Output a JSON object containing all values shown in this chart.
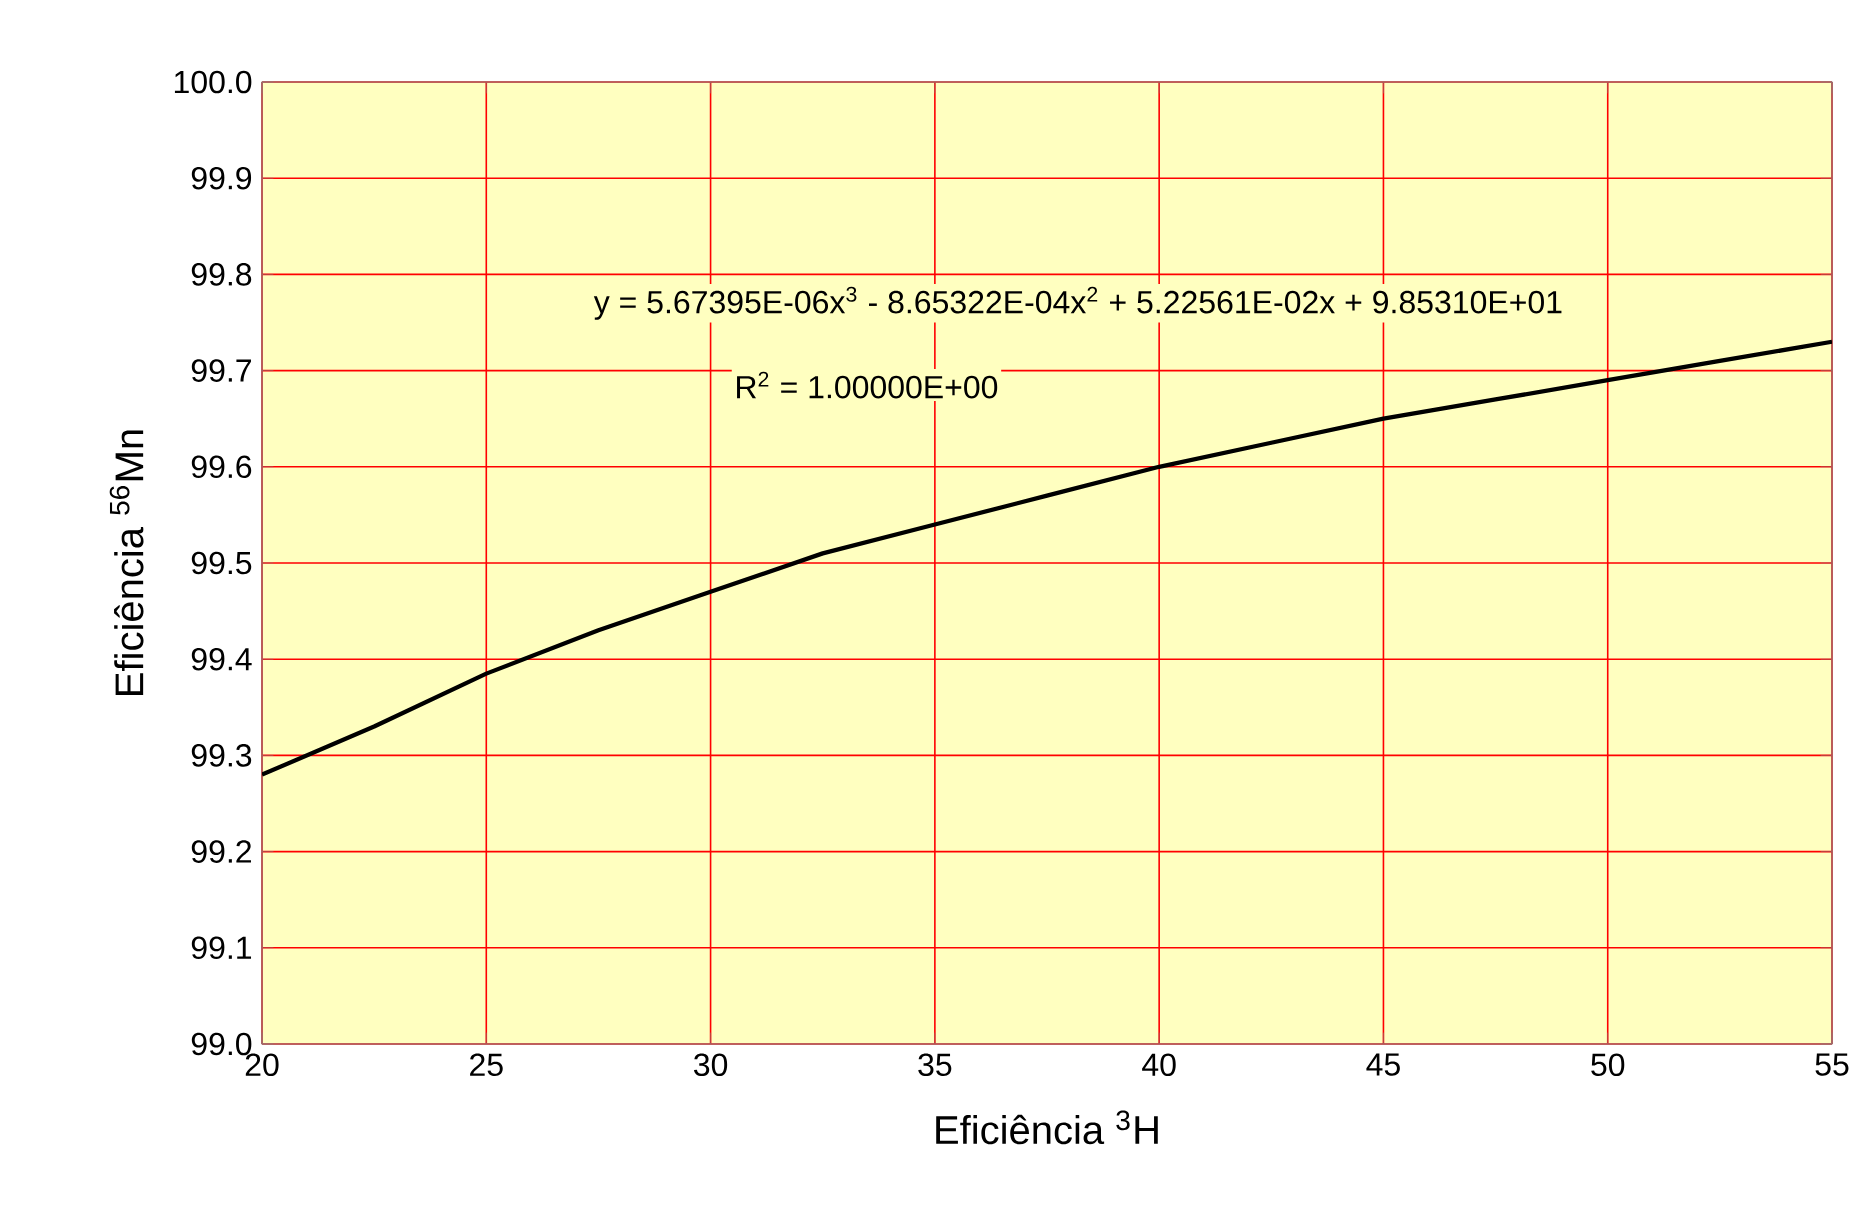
{
  "chart_data": {
    "type": "line",
    "xlabel": "Eficiência $^{3}$H",
    "ylabel": "Eficiência $^{56}$Mn",
    "annotations": [
      "y = 5.67395E-06x$^{3}$ - 8.65322E-04x$^{2}$ + 5.22561E-02x + 9.85310E+01",
      "R$^{2}$ = 1.00000E+00"
    ],
    "x": [
      20,
      22.5,
      25,
      27.5,
      30,
      32.5,
      35,
      37.5,
      40,
      42.5,
      45,
      47.5,
      50,
      52.5,
      55
    ],
    "series": [
      {
        "color": "#000000",
        "values": [
          99.28,
          99.33,
          99.385,
          99.43,
          99.47,
          99.51,
          99.54,
          99.57,
          99.6,
          99.625,
          99.65,
          99.67,
          99.69,
          99.71,
          99.73
        ]
      }
    ],
    "xlim": [
      20,
      55
    ],
    "ylim": [
      99.0,
      100.0
    ],
    "xticks": [
      20,
      25,
      30,
      35,
      40,
      45,
      50,
      55
    ],
    "yticks": [
      {
        "value": 99.0,
        "label": "99.0"
      },
      {
        "value": 99.1,
        "label": "99.1"
      },
      {
        "value": 99.2,
        "label": "99.2"
      },
      {
        "value": 99.3,
        "label": "99.3"
      },
      {
        "value": 99.4,
        "label": "99.4"
      },
      {
        "value": 99.5,
        "label": "99.5"
      },
      {
        "value": 99.6,
        "label": "99.6"
      },
      {
        "value": 99.7,
        "label": "99.7"
      },
      {
        "value": 99.8,
        "label": "99.8"
      },
      {
        "value": 99.9,
        "label": "99.9"
      },
      {
        "value": 100.0,
        "label": "100.0"
      }
    ],
    "grid": true,
    "marker": "none",
    "line_style": "solid"
  }
}
